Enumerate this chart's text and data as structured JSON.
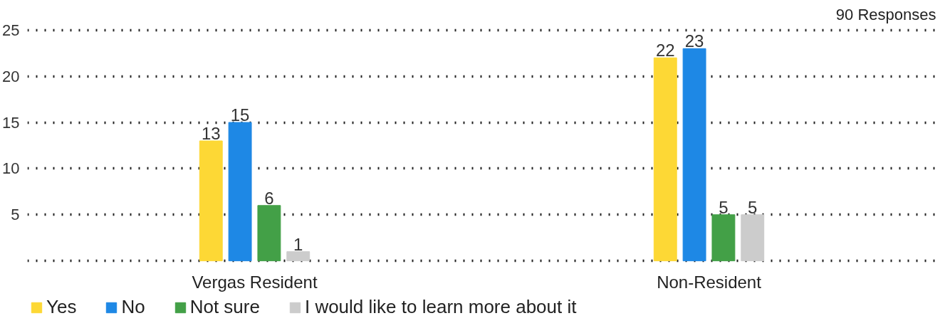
{
  "chart_data": {
    "type": "bar",
    "annotations": [
      "90 Responses"
    ],
    "categories": [
      "Vergas Resident",
      "Non-Resident"
    ],
    "series": [
      {
        "name": "Yes",
        "color": "#fdd835",
        "values": [
          13,
          22
        ]
      },
      {
        "name": "No",
        "color": "#1e88e5",
        "values": [
          15,
          23
        ]
      },
      {
        "name": "Not sure",
        "color": "#43a047",
        "values": [
          6,
          5
        ]
      },
      {
        "name": "I would like to learn more about it",
        "color": "#cccccc",
        "values": [
          1,
          5
        ]
      }
    ],
    "ylim": [
      0,
      25
    ],
    "yticks": [
      {
        "value": 0,
        "label": null
      },
      5,
      10,
      15,
      20,
      25
    ],
    "grid": "y",
    "legend": "bottom left",
    "data_labels": true
  }
}
